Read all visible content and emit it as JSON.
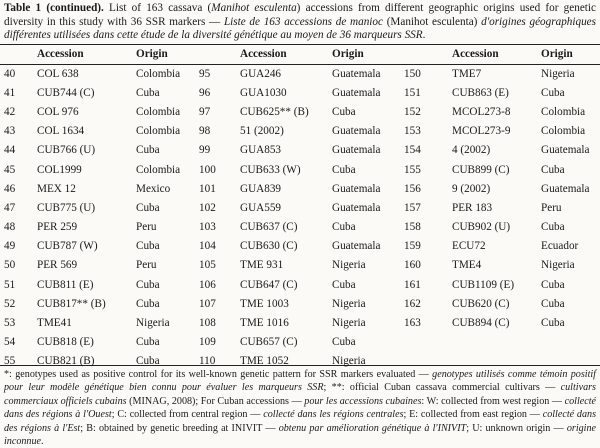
{
  "caption": {
    "label": "Table 1 (continued).",
    "text_a": " List of 163 cassava (",
    "species": "Manihot esculenta",
    "text_b": ") accessions from different geographic origins used for genetic diversity in this study with 36 SSR markers — ",
    "french": "Liste de 163 accessions de manioc",
    "text_c": " (Manihot esculenta) ",
    "french_b": "d'origines géographiques différentes utilisées dans cette étude de la diversité génétique au moyen de 36 marqueurs SSR",
    "end": "."
  },
  "headers": [
    "",
    "Accession",
    "Origin",
    "",
    "Accession",
    "Origin",
    "",
    "Accession",
    "Origin"
  ],
  "rows": [
    [
      "40",
      "COL 638",
      "Colombia",
      "95",
      "GUA246",
      "Guatemala",
      "150",
      "TME7",
      "Nigeria"
    ],
    [
      "41",
      "CUB744 (C)",
      "Cuba",
      "96",
      "GUA1030",
      "Guatemala",
      "151",
      "CUB863 (E)",
      "Cuba"
    ],
    [
      "42",
      "COL 976",
      "Colombia",
      "97",
      "CUB625** (B)",
      "Cuba",
      "152",
      "MCOL273-8",
      "Colombia"
    ],
    [
      "43",
      "COL 1634",
      "Colombia",
      "98",
      "51 (2002)",
      "Guatemala",
      "153",
      "MCOL273-9",
      "Colombia"
    ],
    [
      "44",
      "CUB766 (U)",
      "Cuba",
      "99",
      "GUA853",
      "Guatemala",
      "154",
      "4 (2002)",
      "Guatemala"
    ],
    [
      "45",
      "COL1999",
      "Colombia",
      "100",
      "CUB633 (W)",
      "Cuba",
      "155",
      "CUB899 (C)",
      "Cuba"
    ],
    [
      "46",
      "MEX 12",
      "Mexico",
      "101",
      "GUA839",
      "Guatemala",
      "156",
      "9 (2002)",
      "Guatemala"
    ],
    [
      "47",
      "CUB775 (U)",
      "Cuba",
      "102",
      "GUA559",
      "Guatemala",
      "157",
      "PER 183",
      "Peru"
    ],
    [
      "48",
      "PER 259",
      "Peru",
      "103",
      "CUB637 (C)",
      "Cuba",
      "158",
      "CUB902 (U)",
      "Cuba"
    ],
    [
      "49",
      "CUB787 (W)",
      "Cuba",
      "104",
      "CUB630 (C)",
      "Guatemala",
      "159",
      "ECU72",
      "Ecuador"
    ],
    [
      "50",
      "PER 569",
      "Peru",
      "105",
      "TME 931",
      "Nigeria",
      "160",
      "TME4",
      "Nigeria"
    ],
    [
      "51",
      "CUB811 (E)",
      "Cuba",
      "106",
      "CUB647 (C)",
      "Cuba",
      "161",
      "CUB1109 (E)",
      "Cuba"
    ],
    [
      "52",
      "CUB817** (B)",
      "Cuba",
      "107",
      "TME 1003",
      "Nigeria",
      "162",
      "CUB620 (C)",
      "Cuba"
    ],
    [
      "53",
      "TME41",
      "Nigeria",
      "108",
      "TME 1016",
      "Nigeria",
      "163",
      "CUB894 (C)",
      "Cuba"
    ],
    [
      "54",
      "CUB818 (E)",
      "Cuba",
      "109",
      "CUB657 (C)",
      "Cuba",
      "",
      "",
      ""
    ],
    [
      "55",
      "CUB821 (B)",
      "Cuba",
      "110",
      "TME 1052",
      "Nigeria",
      "",
      "",
      ""
    ]
  ],
  "footnote": {
    "p1": "*: genotypes used as positive control for its well-known genetic pattern for SSR markers evaluated — ",
    "p1_fr": "genotypes utilisés comme témoin positif pour leur modèle génétique bien connu pour évaluer les marqueurs SSR",
    "p2": "; **: official Cuban cassava commercial cultivars — ",
    "p2_fr": "cultivars commerciaux officiels cubains",
    "p3": " (MINAG, 2008); For Cuban accessions — ",
    "p3_fr": "pour les accessions cubaines",
    "p4": ": W: collected from west region — ",
    "p4_fr": "collecté dans des régions à l'Ouest",
    "p5": "; C: collected from central region — ",
    "p5_fr": "collecté dans les régions centrales",
    "p6": "; E: collected from east region — ",
    "p6_fr": "collecté dans des régions à l'Est",
    "p7": "; B: obtained by genetic breeding at INIVIT — ",
    "p7_fr": "obtenu par amélioration génétique à l'INIVIT",
    "p8": "; U: unknown origin — ",
    "p8_fr": "origine inconnue",
    "p9": "."
  }
}
